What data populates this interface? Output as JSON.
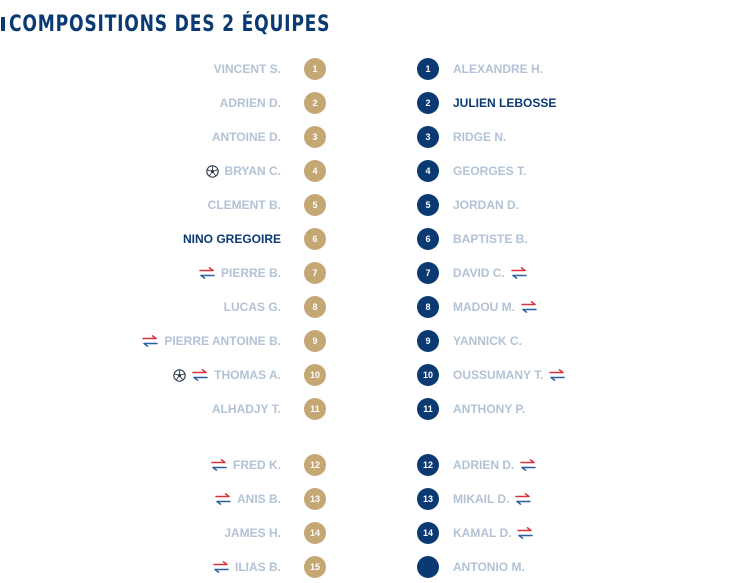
{
  "header": {
    "title": "COMPOSITIONS DES 2 ÉQUIPES"
  },
  "colors": {
    "home": "#c4a772",
    "away": "#0b3a73",
    "inactive_name": "#b3c3d5",
    "highlight_name": "#0b3a73",
    "sub_red": "#d9323b",
    "sub_blue": "#2c5fa0"
  },
  "home": {
    "starters": [
      {
        "number": "1",
        "name": "VINCENT S.",
        "icons": []
      },
      {
        "number": "2",
        "name": "ADRIEN D.",
        "icons": []
      },
      {
        "number": "3",
        "name": "ANTOINE D.",
        "icons": []
      },
      {
        "number": "4",
        "name": "BRYAN C.",
        "icons": [
          "ball-icon"
        ]
      },
      {
        "number": "5",
        "name": "CLEMENT B.",
        "icons": []
      },
      {
        "number": "6",
        "name": "NINO GREGOIRE",
        "icons": [],
        "highlight": true
      },
      {
        "number": "7",
        "name": "PIERRE B.",
        "icons": [
          "substitution-icon"
        ]
      },
      {
        "number": "8",
        "name": "LUCAS G.",
        "icons": []
      },
      {
        "number": "9",
        "name": "PIERRE ANTOINE B.",
        "icons": [
          "substitution-icon"
        ]
      },
      {
        "number": "10",
        "name": "THOMAS A.",
        "icons": [
          "ball-icon",
          "substitution-icon"
        ]
      },
      {
        "number": "11",
        "name": "ALHADJY T.",
        "icons": []
      }
    ],
    "bench": [
      {
        "number": "12",
        "name": "FRED K.",
        "icons": [
          "substitution-icon"
        ]
      },
      {
        "number": "13",
        "name": "ANIS B.",
        "icons": [
          "substitution-icon"
        ]
      },
      {
        "number": "14",
        "name": "JAMES H.",
        "icons": []
      },
      {
        "number": "15",
        "name": "ILIAS B.",
        "icons": [
          "substitution-icon"
        ]
      }
    ]
  },
  "away": {
    "starters": [
      {
        "number": "1",
        "name": "ALEXANDRE H.",
        "icons": []
      },
      {
        "number": "2",
        "name": "JULIEN LEBOSSE",
        "icons": [],
        "highlight": true
      },
      {
        "number": "3",
        "name": "RIDGE N.",
        "icons": []
      },
      {
        "number": "4",
        "name": "GEORGES T.",
        "icons": []
      },
      {
        "number": "5",
        "name": "JORDAN D.",
        "icons": []
      },
      {
        "number": "6",
        "name": "BAPTISTE B.",
        "icons": []
      },
      {
        "number": "7",
        "name": "DAVID C.",
        "icons": [
          "substitution-icon"
        ]
      },
      {
        "number": "8",
        "name": "MADOU M.",
        "icons": [
          "substitution-icon"
        ]
      },
      {
        "number": "9",
        "name": "YANNICK C.",
        "icons": []
      },
      {
        "number": "10",
        "name": "OUSSUMANY T.",
        "icons": [
          "substitution-icon"
        ]
      },
      {
        "number": "11",
        "name": "ANTHONY P.",
        "icons": []
      }
    ],
    "bench": [
      {
        "number": "12",
        "name": "ADRIEN D.",
        "icons": [
          "substitution-icon"
        ]
      },
      {
        "number": "13",
        "name": "MIKAIL D.",
        "icons": [
          "substitution-icon"
        ]
      },
      {
        "number": "14",
        "name": "KAMAL D.",
        "icons": [
          "substitution-icon"
        ]
      },
      {
        "number": "",
        "name": "ANTONIO M.",
        "icons": []
      }
    ]
  }
}
